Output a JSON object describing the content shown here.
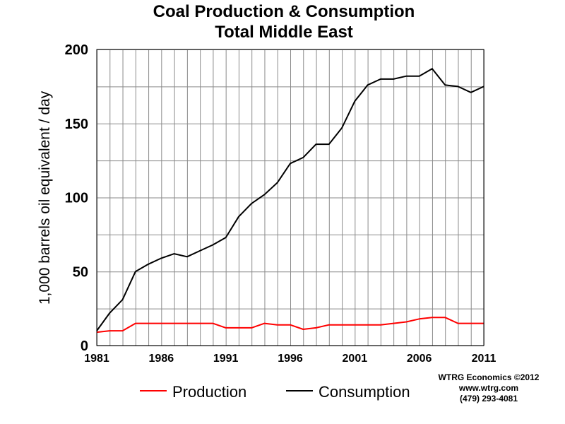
{
  "chart_data": {
    "type": "line",
    "title": "Coal Production & Consumption",
    "subtitle": "Total Middle East",
    "ylabel": "1,000 barrels oil equivalent / day",
    "xlabel": "",
    "xlim": [
      1981,
      2011
    ],
    "ylim": [
      0,
      200
    ],
    "yticks": [
      0,
      50,
      100,
      150,
      200
    ],
    "xticks": [
      1981,
      1986,
      1991,
      1996,
      2001,
      2006,
      2011
    ],
    "grid": true,
    "legend_position": "bottom",
    "x": [
      1981,
      1982,
      1983,
      1984,
      1985,
      1986,
      1987,
      1988,
      1989,
      1990,
      1991,
      1992,
      1993,
      1994,
      1995,
      1996,
      1997,
      1998,
      1999,
      2000,
      2001,
      2002,
      2003,
      2004,
      2005,
      2006,
      2007,
      2008,
      2009,
      2010,
      2011
    ],
    "series": [
      {
        "name": "Production",
        "color": "#ff0000",
        "values": [
          9,
          10,
          10,
          15,
          15,
          15,
          15,
          15,
          15,
          15,
          12,
          12,
          12,
          15,
          14,
          14,
          11,
          12,
          14,
          14,
          14,
          14,
          14,
          15,
          16,
          18,
          19,
          19,
          15,
          15,
          15
        ]
      },
      {
        "name": "Consumption",
        "color": "#000000",
        "values": [
          10,
          22,
          31,
          50,
          55,
          59,
          62,
          60,
          64,
          68,
          73,
          87,
          96,
          102,
          110,
          123,
          127,
          136,
          136,
          147,
          165,
          176,
          180,
          180,
          182,
          182,
          187,
          176,
          175,
          171,
          175
        ]
      }
    ]
  },
  "credits": {
    "line1": "WTRG Economics  ©2012",
    "line2": "www.wtrg.com",
    "line3": "(479) 293-4081"
  }
}
